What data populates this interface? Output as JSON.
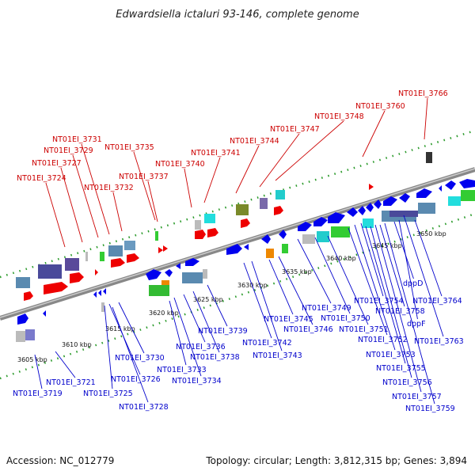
{
  "title": "Edwardsiella ictaluri 93-146, complete genome",
  "footer": {
    "accession": "Accession: NC_012779",
    "topology": "Topology: circular; Length: 3,812,315 bp; Genes: 3,894"
  },
  "colors": {
    "top_strand_labels": "#cc0000",
    "bottom_strand_labels": "#0000cc"
  },
  "kbp_ticks": [
    "3605 kbp",
    "3610 kbp",
    "3615 kbp",
    "3620 kbp",
    "3625 kbp",
    "3630 kbp",
    "3635 kbp",
    "3640 kbp",
    "3645 kbp",
    "3650 kbp"
  ],
  "top_labels": [
    "NT01EI_3724",
    "NT01EI_3727",
    "NT01EI_3729",
    "NT01EI_3731",
    "NT01EI_3732",
    "NT01EI_3735",
    "NT01EI_3737",
    "NT01EI_3740",
    "NT01EI_3741",
    "NT01EI_3744",
    "NT01EI_3747",
    "NT01EI_3748",
    "NT01EI_3760",
    "NT01EI_3766"
  ],
  "bottom_labels": [
    "NT01EI_3719",
    "NT01EI_3721",
    "NT01EI_3725",
    "NT01EI_3726",
    "NT01EI_3728",
    "NT01EI_3730",
    "NT01EI_3733",
    "NT01EI_3734",
    "NT01EI_3736",
    "NT01EI_3738",
    "NT01EI_3739",
    "NT01EI_3742",
    "NT01EI_3743",
    "NT01EI_3745",
    "NT01EI_3746",
    "NT01EI_3749",
    "NT01EI_3750",
    "NT01EI_3751",
    "NT01EI_3752",
    "NT01EI_3753",
    "NT01EI_3754",
    "NT01EI_3755",
    "NT01EI_3756",
    "NT01EI_3757",
    "NT01EI_3758",
    "NT01EI_3759",
    "NT01EI_3763",
    "NT01EI_3764",
    "dppD",
    "dppF"
  ]
}
